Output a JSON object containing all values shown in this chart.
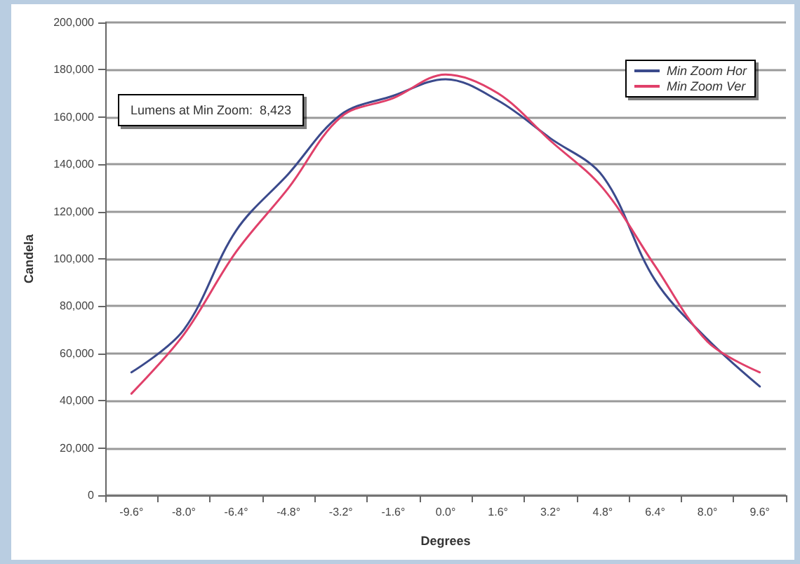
{
  "chart_data": {
    "type": "line",
    "xlabel": "Degrees",
    "ylabel": "Candela",
    "categories": [
      "-9.6°",
      "-8.0°",
      "-6.4°",
      "-4.8°",
      "-3.2°",
      "-1.6°",
      "0.0°",
      "1.6°",
      "3.2°",
      "4.8°",
      "6.4°",
      "8.0°",
      "9.6°"
    ],
    "series": [
      {
        "name": "Min Zoom Hor",
        "color": "#3b4a8c",
        "values": [
          52000,
          70000,
          112000,
          136000,
          161000,
          169000,
          176000,
          167000,
          151000,
          135000,
          91000,
          66000,
          46000
        ]
      },
      {
        "name": "Min Zoom Ver",
        "color": "#e0406a",
        "values": [
          43000,
          68000,
          103000,
          130000,
          160000,
          168000,
          178000,
          170000,
          150000,
          130000,
          97000,
          65000,
          52000
        ]
      }
    ],
    "ylim": [
      0,
      200000
    ],
    "yticks": [
      0,
      {
        "value": 20000,
        "label": "20,000"
      },
      {
        "value": 40000,
        "label": "40,000"
      },
      {
        "value": 60000,
        "label": "60,000"
      },
      {
        "value": 80000,
        "label": "80,000"
      },
      {
        "value": 100000,
        "label": "100,000"
      },
      {
        "value": 120000,
        "label": "120,000"
      },
      {
        "value": 140000,
        "label": "140,000"
      },
      {
        "value": 160000,
        "label": "160,000"
      },
      {
        "value": 180000,
        "label": "180,000"
      },
      {
        "value": 200000,
        "label": "200,000"
      }
    ],
    "annotations": [
      "Lumens at Min Zoom:  8,423"
    ],
    "grid": "y",
    "legend": "top right",
    "marker": "none",
    "line_style": "solid"
  }
}
